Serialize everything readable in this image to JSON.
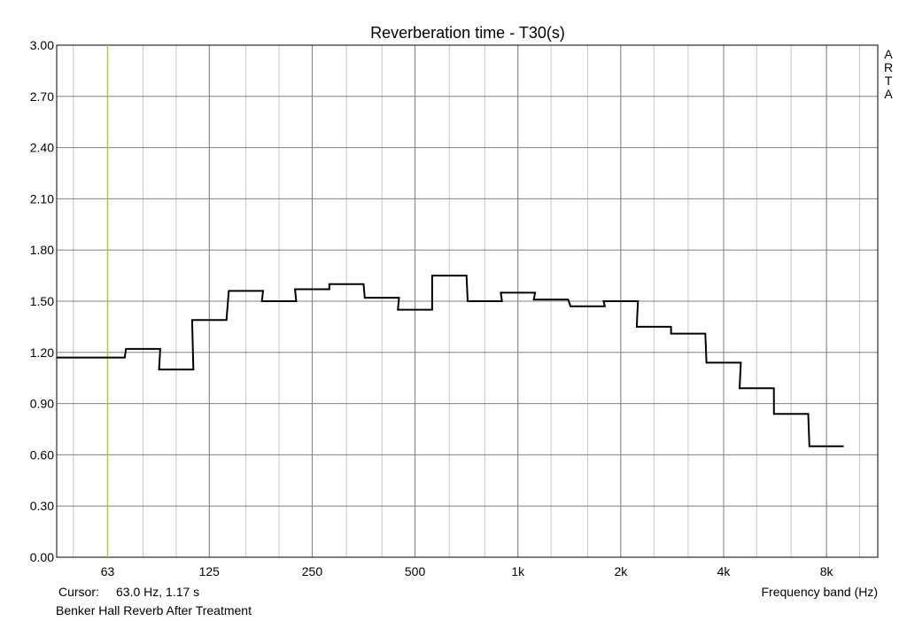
{
  "chart_data": {
    "type": "line",
    "style": "step",
    "title": "Reverberation time - T30(s)",
    "xlabel": "Frequency band (Hz)",
    "ylabel": "",
    "x_scale": "log",
    "grid": true,
    "ylim": [
      0,
      3.0
    ],
    "y_ticks": [
      "0.00",
      "0.30",
      "0.60",
      "0.90",
      "1.20",
      "1.50",
      "1.80",
      "2.10",
      "2.40",
      "2.70",
      "3.00"
    ],
    "x_tick_labels": [
      {
        "label": "63",
        "hz": 63
      },
      {
        "label": "125",
        "hz": 125
      },
      {
        "label": "250",
        "hz": 250
      },
      {
        "label": "500",
        "hz": 500
      },
      {
        "label": "1k",
        "hz": 1000
      },
      {
        "label": "2k",
        "hz": 2000
      },
      {
        "label": "4k",
        "hz": 4000
      },
      {
        "label": "8k",
        "hz": 8000
      }
    ],
    "series": [
      {
        "bands_hz": [
          50,
          63,
          80,
          100,
          125,
          160,
          200,
          250,
          315,
          400,
          500,
          630,
          800,
          1000,
          1250,
          1600,
          2000,
          2500,
          3150,
          4000,
          5000,
          6300,
          8000
        ],
        "values": [
          1.17,
          1.17,
          1.22,
          1.1,
          1.39,
          1.56,
          1.5,
          1.57,
          1.6,
          1.52,
          1.45,
          1.65,
          1.5,
          1.55,
          1.51,
          1.47,
          1.5,
          1.35,
          1.31,
          1.14,
          0.99,
          0.84,
          0.65
        ]
      }
    ],
    "cursor": {
      "hz": 63
    }
  },
  "watermark": "ARTA",
  "footer": {
    "cursor_label": "Cursor:",
    "cursor_value": "63.0 Hz, 1.17 s",
    "measurement_name": "Benker Hall Reverb After Treatment"
  },
  "colors": {
    "cursor": "#c8c800",
    "major_grid": "#808080",
    "minor_grid": "#c8c8c8",
    "trace": "#000000"
  }
}
